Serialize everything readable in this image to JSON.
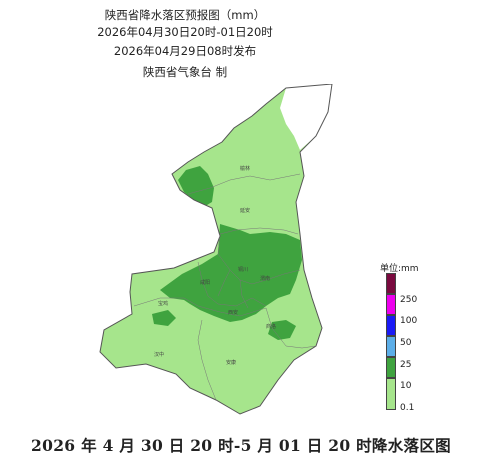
{
  "header": {
    "title": "陕西省降水落区预报图（mm）",
    "valid_range": "2026年04月30日20时-01日20时",
    "issued": "2026年04月29日08时发布",
    "issuer": "陕西省气象台 制"
  },
  "legend": {
    "unit": "单位:mm",
    "levels": [
      {
        "label": "250",
        "color": "#7a0a3f"
      },
      {
        "label": "100",
        "color": "#ee00ee"
      },
      {
        "label": "50",
        "color": "#1a1af5"
      },
      {
        "label": "25",
        "color": "#5caee8"
      },
      {
        "label": "10",
        "color": "#3fa33f"
      },
      {
        "label": "0.1",
        "color": "#a6e58c"
      }
    ]
  },
  "cities": [
    {
      "name": "榆林"
    },
    {
      "name": "延安"
    },
    {
      "name": "铜川"
    },
    {
      "name": "渭南"
    },
    {
      "name": "宝鸡"
    },
    {
      "name": "咸阳"
    },
    {
      "name": "汉中"
    },
    {
      "name": "安康"
    },
    {
      "name": "商洛"
    },
    {
      "name": "西安"
    }
  ],
  "footer": "2026 年 4 月 30 日 20 时-5 月 01 日 20 时降水落区图"
}
